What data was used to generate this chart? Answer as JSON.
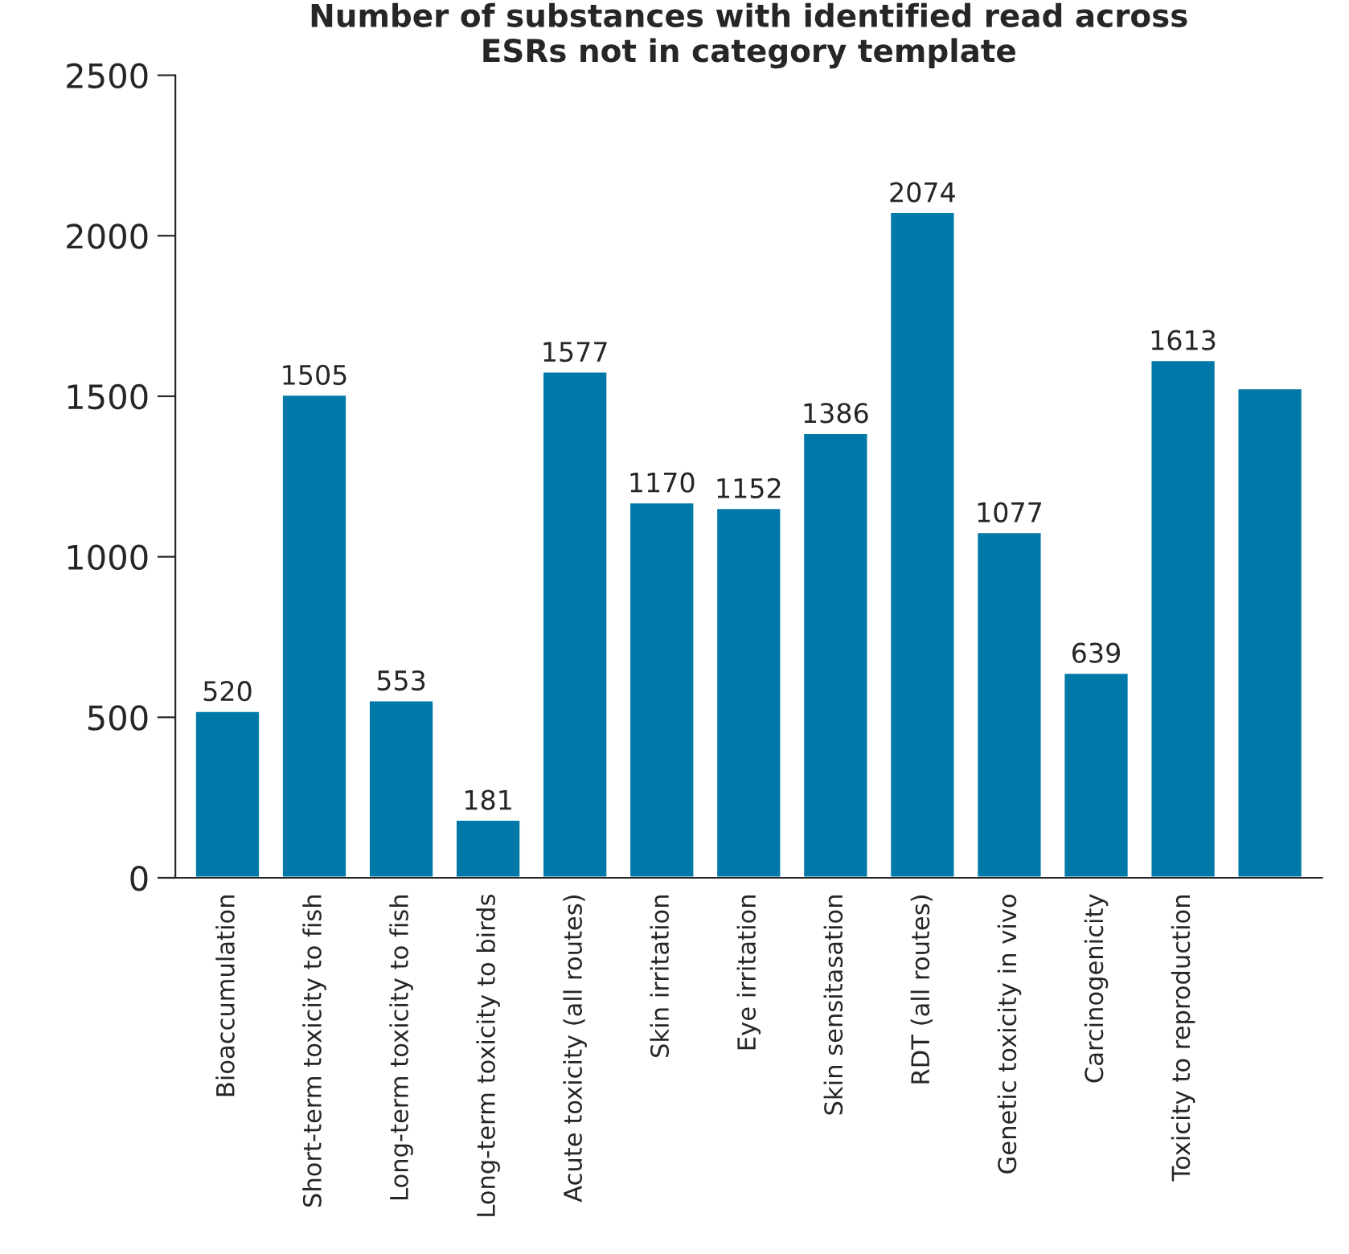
{
  "chart_data": {
    "type": "bar",
    "title": "Number of substances with identified read across\nESRs not in category template",
    "categories": [
      "Bioaccumulation",
      "Short-term toxicity to fish",
      "Long-term toxicity to fish",
      "Long-term toxicity to birds",
      "Acute toxicity (all routes)",
      "Skin irritation",
      "Eye irritation",
      "Skin sensitasation",
      "RDT (all routes)",
      "Genetic toxicity in vivo",
      "Carcinogenicity",
      "Toxicity to reproduction",
      null
    ],
    "values": [
      520,
      1505,
      553,
      181,
      1577,
      1170,
      1152,
      1386,
      2074,
      1077,
      639,
      1613,
      1525
    ],
    "value_labels": [
      "520",
      "1505",
      "553",
      "181",
      "1577",
      "1170",
      "1152",
      "1386",
      "2074",
      "1077",
      "639",
      "1613",
      null
    ],
    "color": "#0079a8",
    "ylim": [
      0,
      2500
    ],
    "yticks": [
      0,
      500,
      1000,
      1500,
      2000,
      2500
    ],
    "grid": false,
    "legend": false
  }
}
